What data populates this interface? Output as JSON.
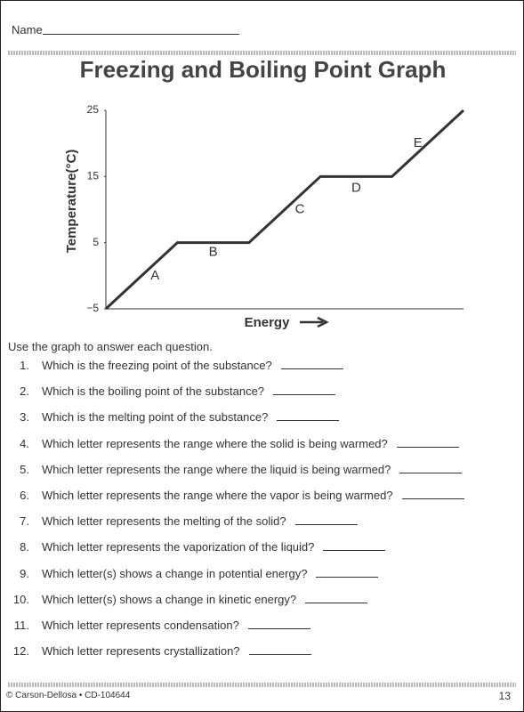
{
  "header": {
    "name_label": "Name"
  },
  "title": "Freezing and Boiling Point Graph",
  "chart_data": {
    "type": "line",
    "x_label": "Energy",
    "y_label": "Temperature(°C)",
    "categories": [
      null,
      null,
      null,
      null,
      null,
      null
    ],
    "values": [
      -5,
      5,
      5,
      15,
      15,
      25
    ],
    "color": "#333333",
    "ylim": [
      -5,
      25
    ],
    "yticks": [
      {
        "value": -5,
        "label": "−5"
      },
      5,
      15,
      25
    ],
    "annotations": [
      "A",
      "B",
      "C",
      "D",
      "E"
    ]
  },
  "instructions": "Use the graph to answer each question.",
  "questions": [
    {
      "number": "1.",
      "text": "Which is the freezing point of the substance?"
    },
    {
      "number": "2.",
      "text": "Which is the boiling point of the substance?"
    },
    {
      "number": "3.",
      "text": "Which is the melting point of the substance?"
    },
    {
      "number": "4.",
      "text": "Which letter represents the range where the solid is being warmed?"
    },
    {
      "number": "5.",
      "text": "Which letter represents the range where the liquid is being warmed?"
    },
    {
      "number": "6.",
      "text": "Which letter represents the range where the vapor is being warmed?"
    },
    {
      "number": "7.",
      "text": "Which letter represents the melting of the solid?"
    },
    {
      "number": "8.",
      "text": "Which letter represents the vaporization of the liquid?"
    },
    {
      "number": "9.",
      "text": "Which letter(s) shows a change in potential energy?"
    },
    {
      "number": "10.",
      "text": "Which letter(s) shows a change in kinetic energy?"
    },
    {
      "number": "11.",
      "text": "Which letter represents condensation?"
    },
    {
      "number": "12.",
      "text": "Which letter represents crystallization?"
    }
  ],
  "footer": {
    "copyright": "© Carson-Dellosa • CD-104644",
    "page": "13"
  }
}
